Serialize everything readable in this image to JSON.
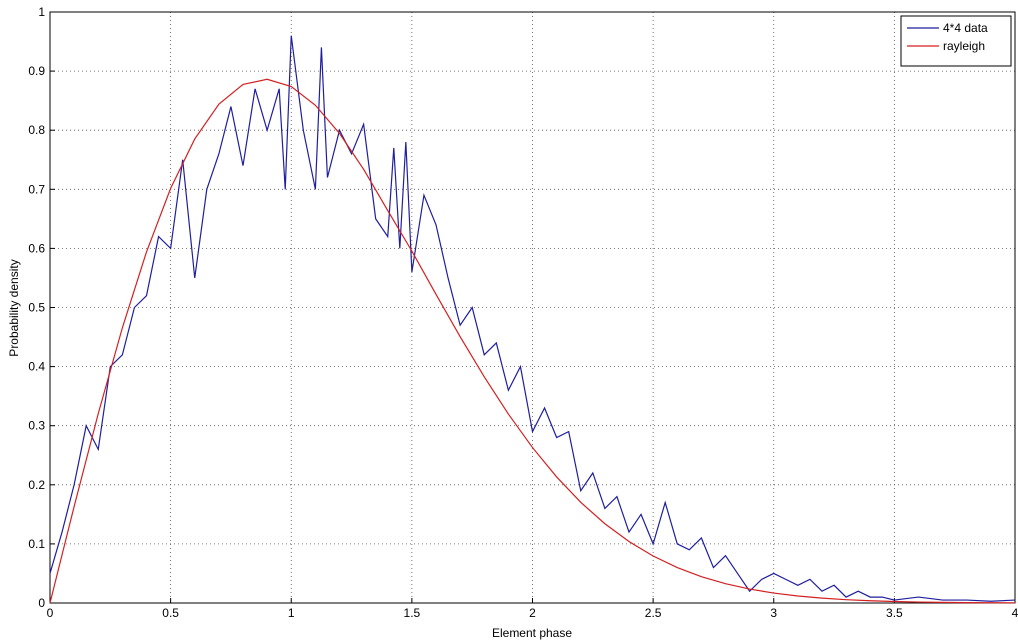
{
  "chart_data": {
    "type": "line",
    "xlabel": "Element phase",
    "ylabel": "Probability density",
    "xlim": [
      0,
      4
    ],
    "ylim": [
      0,
      1
    ],
    "xticks": [
      0,
      0.5,
      1,
      1.5,
      2,
      2.5,
      3,
      3.5,
      4
    ],
    "yticks": [
      0,
      0.1,
      0.2,
      0.3,
      0.4,
      0.5,
      0.6,
      0.7,
      0.8,
      0.9,
      1
    ],
    "grid": true,
    "legend": "upper right",
    "series": [
      {
        "name": "4*4 data",
        "color": "#1f1f9e",
        "x": [
          0,
          0.05,
          0.1,
          0.15,
          0.2,
          0.25,
          0.3,
          0.35,
          0.4,
          0.45,
          0.5,
          0.55,
          0.6,
          0.65,
          0.7,
          0.75,
          0.8,
          0.85,
          0.9,
          0.95,
          0.975,
          1.0,
          1.05,
          1.1,
          1.125,
          1.15,
          1.2,
          1.25,
          1.3,
          1.35,
          1.4,
          1.425,
          1.45,
          1.475,
          1.5,
          1.55,
          1.6,
          1.65,
          1.7,
          1.75,
          1.8,
          1.85,
          1.9,
          1.95,
          2.0,
          2.05,
          2.1,
          2.15,
          2.2,
          2.25,
          2.3,
          2.35,
          2.4,
          2.45,
          2.5,
          2.55,
          2.6,
          2.65,
          2.7,
          2.75,
          2.8,
          2.85,
          2.9,
          2.95,
          3.0,
          3.05,
          3.1,
          3.15,
          3.2,
          3.25,
          3.3,
          3.35,
          3.4,
          3.45,
          3.5,
          3.6,
          3.7,
          3.8,
          3.9,
          4.0
        ],
        "values": [
          0.05,
          0.12,
          0.2,
          0.3,
          0.26,
          0.4,
          0.42,
          0.5,
          0.52,
          0.62,
          0.6,
          0.75,
          0.55,
          0.7,
          0.76,
          0.84,
          0.74,
          0.87,
          0.8,
          0.87,
          0.7,
          0.96,
          0.8,
          0.7,
          0.94,
          0.72,
          0.8,
          0.76,
          0.81,
          0.65,
          0.62,
          0.77,
          0.6,
          0.78,
          0.56,
          0.69,
          0.64,
          0.55,
          0.47,
          0.5,
          0.42,
          0.44,
          0.36,
          0.4,
          0.29,
          0.33,
          0.28,
          0.29,
          0.19,
          0.22,
          0.16,
          0.18,
          0.12,
          0.15,
          0.1,
          0.17,
          0.1,
          0.09,
          0.11,
          0.06,
          0.08,
          0.05,
          0.02,
          0.04,
          0.05,
          0.04,
          0.03,
          0.04,
          0.02,
          0.03,
          0.01,
          0.02,
          0.01,
          0.01,
          0.005,
          0.01,
          0.005,
          0.005,
          0.003,
          0.005
        ]
      },
      {
        "name": "rayleigh",
        "color": "#d42020",
        "x": [
          0,
          0.1,
          0.2,
          0.3,
          0.4,
          0.5,
          0.6,
          0.7,
          0.8,
          0.9,
          1.0,
          1.1,
          1.2,
          1.3,
          1.4,
          1.5,
          1.6,
          1.7,
          1.8,
          1.9,
          2.0,
          2.1,
          2.2,
          2.3,
          2.4,
          2.5,
          2.6,
          2.7,
          2.8,
          2.9,
          3.0,
          3.1,
          3.2,
          3.3,
          3.4,
          3.5,
          3.6,
          3.7,
          3.8,
          3.9,
          4.0
        ],
        "values": [
          0,
          0.1633,
          0.3204,
          0.4657,
          0.5941,
          0.7016,
          0.7852,
          0.8441,
          0.8774,
          0.8862,
          0.8738,
          0.8422,
          0.7946,
          0.7339,
          0.664,
          0.5954,
          0.5223,
          0.4506,
          0.3827,
          0.3197,
          0.263,
          0.2133,
          0.1703,
          0.1341,
          0.104,
          0.0795,
          0.0599,
          0.0445,
          0.0326,
          0.0236,
          0.0168,
          0.0118,
          0.0082,
          0.0056,
          0.0038,
          0.0025,
          0.0016,
          0.001,
          0.0007,
          0.0004,
          0.0003
        ]
      }
    ]
  }
}
